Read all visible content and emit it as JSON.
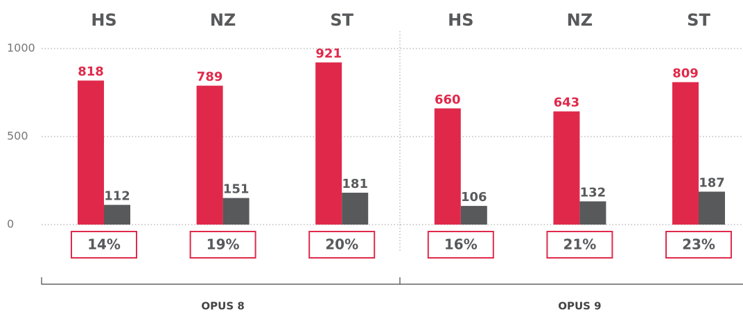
{
  "chart_data": {
    "type": "bar",
    "categories": [
      "HS",
      "NZ",
      "ST",
      "HS",
      "NZ",
      "ST"
    ],
    "groups": [
      "OPUS 8",
      "OPUS 9"
    ],
    "series": [
      {
        "color": "#e0294a",
        "values": [
          818,
          789,
          921,
          660,
          643,
          809
        ]
      },
      {
        "color": "#58595b",
        "values": [
          112,
          151,
          181,
          106,
          132,
          187
        ]
      }
    ],
    "shares": {
      "values": [
        14,
        19,
        20,
        16,
        21,
        23
      ],
      "value_labels": [
        "14%",
        "19%",
        "20%",
        "16%",
        "21%",
        "23%"
      ],
      "color": "#e0294a"
    },
    "ylim": [
      0,
      1000
    ],
    "yticks": [
      0,
      500,
      1000
    ],
    "grid": true
  }
}
